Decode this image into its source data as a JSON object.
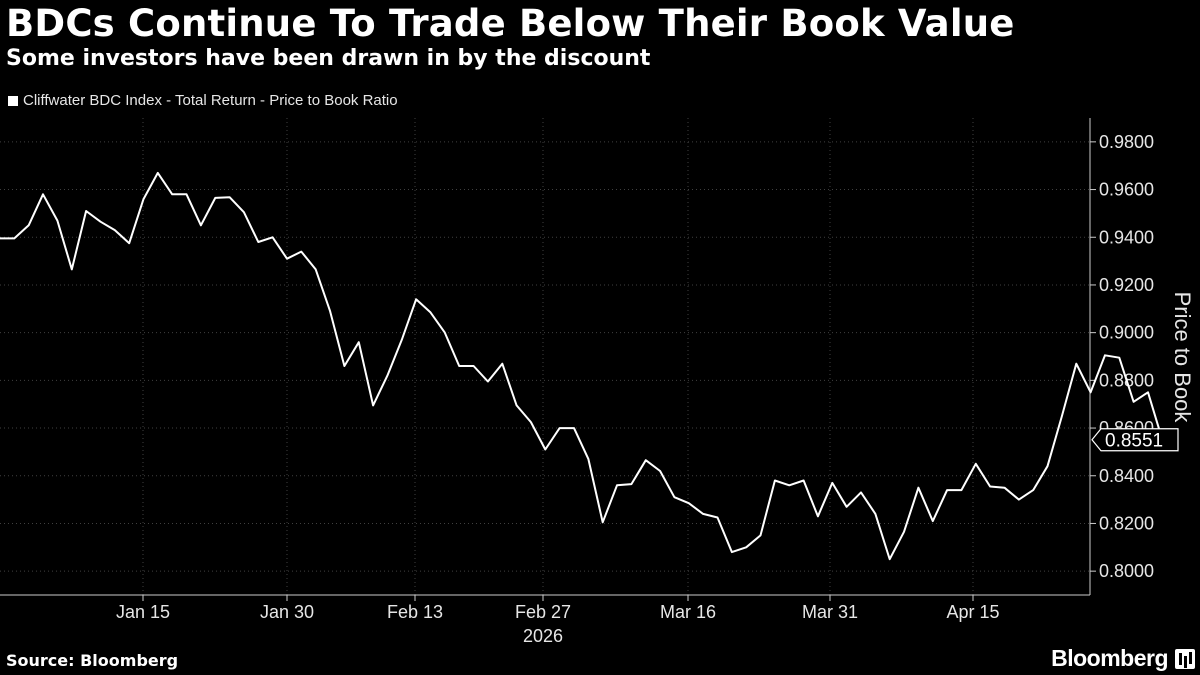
{
  "header": {
    "title": "BDCs Continue To Trade Below Their Book Value",
    "subtitle": "Some investors have been drawn in by the discount"
  },
  "footer": {
    "source": "Source: Bloomberg",
    "brand": "Bloomberg"
  },
  "colors": {
    "background": "#000000",
    "line": "#ffffff",
    "grid": "#404040"
  },
  "chart_data": {
    "type": "line",
    "legend": "Cliffwater BDC Index - Total Return - Price to Book Ratio",
    "ylabel": "Price to Book",
    "xlabel": "",
    "x_year_label": "2026",
    "ylim": [
      0.79,
      0.99
    ],
    "yticks": [
      "0.8000",
      "0.8200",
      "0.8400",
      "0.8600",
      "0.8800",
      "0.9000",
      "0.9200",
      "0.9400",
      "0.9600",
      "0.9800"
    ],
    "ytick_values": [
      0.8,
      0.82,
      0.84,
      0.86,
      0.88,
      0.9,
      0.92,
      0.94,
      0.96,
      0.98
    ],
    "xticks": [
      "Jan 15",
      "Jan 30",
      "Feb 13",
      "Feb 27",
      "Mar 16",
      "Mar 31",
      "Apr 15"
    ],
    "last_value_label": "0.8551",
    "last_value": 0.8551,
    "series": [
      {
        "values": [
          0.9395,
          0.9395,
          0.945,
          0.958,
          0.947,
          0.9265,
          0.951,
          0.9465,
          0.943,
          0.9375,
          0.956,
          0.967,
          0.958,
          0.958,
          0.945,
          0.9565,
          0.9568,
          0.9505,
          0.938,
          0.94,
          0.931,
          0.934,
          0.9265,
          0.909,
          0.886,
          0.896,
          0.8695,
          0.882,
          0.897,
          0.914,
          0.9085,
          0.9,
          0.886,
          0.886,
          0.8795,
          0.887,
          0.8695,
          0.8625,
          0.851,
          0.86,
          0.86,
          0.847,
          0.8205,
          0.836,
          0.8365,
          0.8465,
          0.842,
          0.831,
          0.8285,
          0.824,
          0.8225,
          0.808,
          0.81,
          0.815,
          0.838,
          0.836,
          0.838,
          0.823,
          0.837,
          0.827,
          0.833,
          0.824,
          0.805,
          0.8165,
          0.835,
          0.821,
          0.834,
          0.834,
          0.845,
          0.8355,
          0.835,
          0.83,
          0.834,
          0.844,
          0.865,
          0.887,
          0.875,
          0.8905,
          0.8895,
          0.871,
          0.875,
          0.8551,
          0.8551
        ]
      }
    ]
  }
}
